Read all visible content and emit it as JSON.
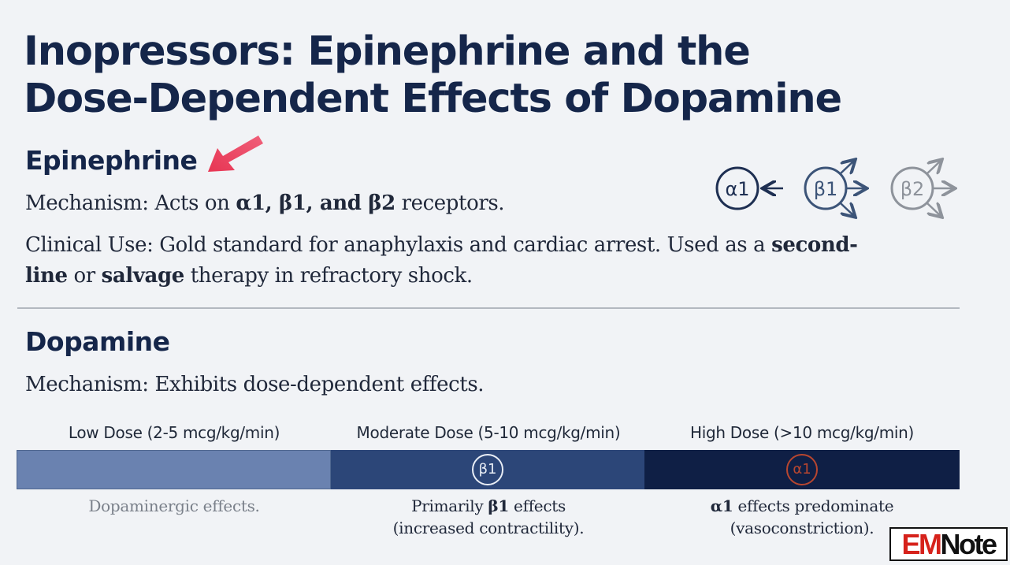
{
  "title": {
    "line1": "Inopressors: Epinephrine and the",
    "line2": "Dose-Dependent Effects of Dopamine"
  },
  "epinephrine": {
    "heading": "Epinephrine",
    "mechanism_prefix": "Mechanism: Acts on ",
    "mechanism_bold": "α1, β1, and β2",
    "mechanism_suffix": " receptors.",
    "clinical_prefix": "Clinical Use: Gold standard for anaphylaxis and cardiac arrest. Used as a ",
    "clinical_bold1": "second-line",
    "clinical_mid": " or ",
    "clinical_bold2": "salvage",
    "clinical_suffix": " therapy in refractory shock.",
    "receptors": [
      {
        "label": "α1",
        "color": "#1e2f52"
      },
      {
        "label": "β1",
        "color": "#3c5478"
      },
      {
        "label": "β2",
        "color": "#8e939b"
      }
    ]
  },
  "dopamine": {
    "heading": "Dopamine",
    "mechanism": "Mechanism: Exhibits dose-dependent effects.",
    "doses": [
      {
        "label": "Low Dose (2-5 mcg/kg/min)",
        "color": "#6a82b0",
        "effect_line1": "Dopaminergic effects.",
        "effect_line2": ""
      },
      {
        "label": "Moderate Dose (5-10 mcg/kg/min)",
        "color": "#2c4678",
        "icon": "β1",
        "effect_prefix": "Primarily ",
        "effect_bold": "β1",
        "effect_suffix": " effects",
        "effect_line2": "(increased contractility)."
      },
      {
        "label": "High Dose (>10 mcg/kg/min)",
        "color": "#0f1f45",
        "icon": "α1",
        "effect_bold": "α1",
        "effect_suffix": " effects predominate",
        "effect_line2": "(vasoconstriction)."
      }
    ]
  },
  "logo": {
    "part1": "EM",
    "part2": "Note"
  },
  "colors": {
    "title": "#15264a",
    "arrow": "#e8405a",
    "divider": "#b3b8c0",
    "icon_beta1": "#e8edf5",
    "icon_alpha1": "#b8462f"
  }
}
